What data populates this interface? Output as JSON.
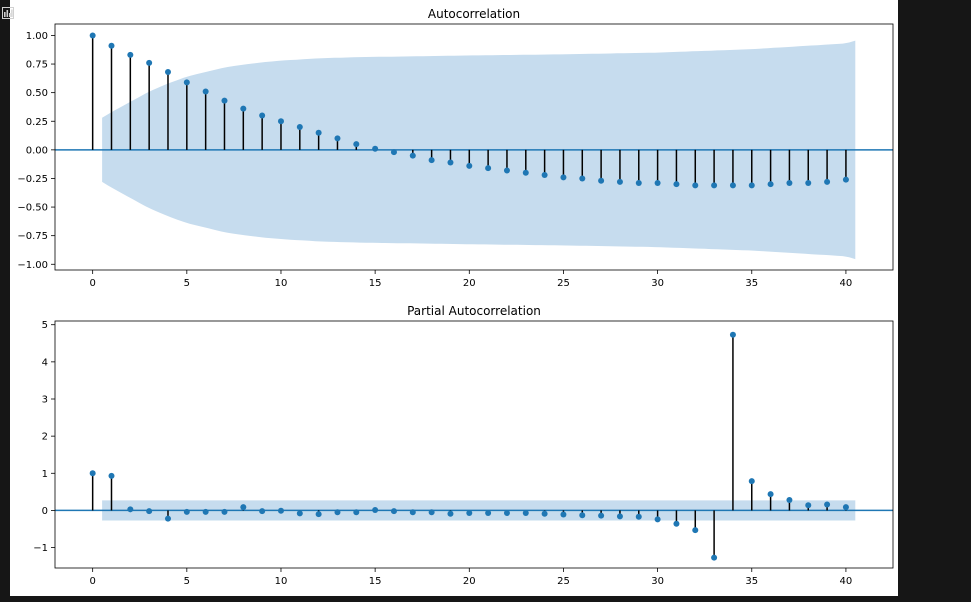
{
  "colors": {
    "stem": "#000000",
    "marker": "#1f77b4",
    "confint": "#c6dcee",
    "zeroline": "#1f77b4",
    "background": "#ffffff",
    "page": "#161616"
  },
  "toolbar": {
    "icon": "bar-chart-icon"
  },
  "chart_data": [
    {
      "type": "stem",
      "title": "Autocorrelation",
      "xlabel": "",
      "ylabel": "",
      "xlim": [
        -2,
        42.5
      ],
      "ylim": [
        -1.05,
        1.1
      ],
      "xticks": [
        0,
        5,
        10,
        15,
        20,
        25,
        30,
        35,
        40
      ],
      "yticks": [
        -1.0,
        -0.75,
        -0.5,
        -0.25,
        0.0,
        0.25,
        0.5,
        0.75,
        1.0
      ],
      "ytick_labels": [
        "−1.00",
        "−0.75",
        "−0.50",
        "−0.25",
        "0.00",
        "0.25",
        "0.50",
        "0.75",
        "1.00"
      ],
      "xtick_labels": [
        "0",
        "5",
        "10",
        "15",
        "20",
        "25",
        "30",
        "35",
        "40"
      ],
      "x": [
        0,
        1,
        2,
        3,
        4,
        5,
        6,
        7,
        8,
        9,
        10,
        11,
        12,
        13,
        14,
        15,
        16,
        17,
        18,
        19,
        20,
        21,
        22,
        23,
        24,
        25,
        26,
        27,
        28,
        29,
        30,
        31,
        32,
        33,
        34,
        35,
        36,
        37,
        38,
        39,
        40
      ],
      "values": [
        1.0,
        0.91,
        0.83,
        0.76,
        0.68,
        0.59,
        0.51,
        0.43,
        0.36,
        0.3,
        0.25,
        0.2,
        0.15,
        0.1,
        0.05,
        0.01,
        -0.02,
        -0.05,
        -0.09,
        -0.11,
        -0.14,
        -0.16,
        -0.18,
        -0.2,
        -0.22,
        -0.24,
        -0.25,
        -0.27,
        -0.28,
        -0.29,
        -0.29,
        -0.3,
        -0.31,
        -0.31,
        -0.31,
        -0.31,
        -0.3,
        -0.29,
        -0.29,
        -0.28,
        -0.26
      ],
      "confint_x": [
        0.5,
        1,
        2,
        3,
        4,
        5,
        6,
        7,
        8,
        9,
        10,
        12,
        14,
        16,
        18,
        20,
        25,
        30,
        35,
        40,
        40.5
      ],
      "confint_upper": [
        0.28,
        0.33,
        0.42,
        0.51,
        0.58,
        0.64,
        0.68,
        0.72,
        0.745,
        0.765,
        0.78,
        0.8,
        0.81,
        0.815,
        0.82,
        0.825,
        0.835,
        0.85,
        0.88,
        0.93,
        0.955
      ],
      "grid": false,
      "legend": "none"
    },
    {
      "type": "stem",
      "title": "Partial Autocorrelation",
      "xlabel": "",
      "ylabel": "",
      "xlim": [
        -2,
        42.5
      ],
      "ylim": [
        -1.55,
        5.1
      ],
      "xticks": [
        0,
        5,
        10,
        15,
        20,
        25,
        30,
        35,
        40
      ],
      "yticks": [
        -1,
        0,
        1,
        2,
        3,
        4,
        5
      ],
      "ytick_labels": [
        "−1",
        "0",
        "1",
        "2",
        "3",
        "4",
        "5"
      ],
      "xtick_labels": [
        "0",
        "5",
        "10",
        "15",
        "20",
        "25",
        "30",
        "35",
        "40"
      ],
      "x": [
        0,
        1,
        2,
        3,
        4,
        5,
        6,
        7,
        8,
        9,
        10,
        11,
        12,
        13,
        14,
        15,
        16,
        17,
        18,
        19,
        20,
        21,
        22,
        23,
        24,
        25,
        26,
        27,
        28,
        29,
        30,
        31,
        32,
        33,
        34,
        35,
        36,
        37,
        38,
        39,
        40
      ],
      "values": [
        1.0,
        0.93,
        0.03,
        -0.02,
        -0.22,
        -0.04,
        -0.04,
        -0.04,
        0.09,
        -0.02,
        -0.01,
        -0.08,
        -0.1,
        -0.05,
        -0.05,
        0.01,
        -0.02,
        -0.05,
        -0.05,
        -0.09,
        -0.07,
        -0.07,
        -0.07,
        -0.07,
        -0.09,
        -0.11,
        -0.13,
        -0.14,
        -0.16,
        -0.17,
        -0.24,
        -0.36,
        -0.53,
        -1.27,
        4.73,
        0.79,
        0.44,
        0.28,
        0.14,
        0.16,
        0.09
      ],
      "confint_x": [
        0.5,
        40.5
      ],
      "confint_upper": [
        0.27,
        0.27
      ],
      "grid": false,
      "legend": "none"
    }
  ]
}
